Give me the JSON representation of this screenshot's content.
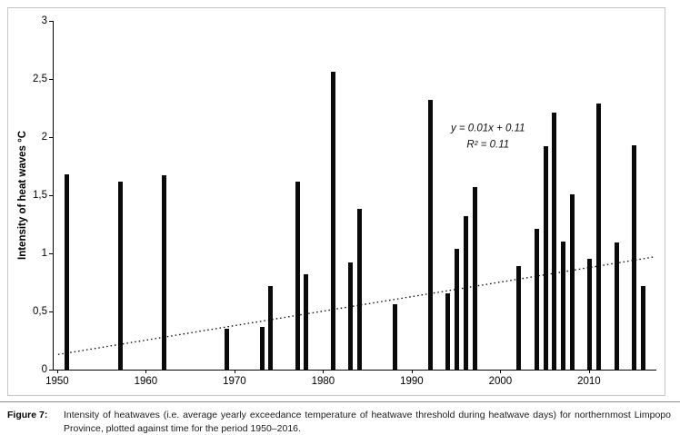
{
  "figure": {
    "caption_label": "Figure 7:",
    "caption_text": "Intensity of heatwaves (i.e. average yearly exceedance temperature of heatwave threshold during heatwave days) for northernmost Limpopo Province, plotted against time for the period 1950–2016."
  },
  "chart_data": {
    "type": "bar",
    "title": "",
    "xlabel": "",
    "ylabel": "Intensity of heat waves °C",
    "xlim": [
      1949.5,
      2017.5
    ],
    "ylim": [
      0,
      3
    ],
    "grid": false,
    "legend": "none",
    "bar_color": "#0a0a0a",
    "decimal_separator": ",",
    "x_ticks": [
      {
        "value": 1950,
        "label": "1950"
      },
      {
        "value": 1960,
        "label": "1960"
      },
      {
        "value": 1970,
        "label": "1970"
      },
      {
        "value": 1980,
        "label": "1980"
      },
      {
        "value": 1990,
        "label": "1990"
      },
      {
        "value": 2000,
        "label": "2000"
      },
      {
        "value": 2010,
        "label": "2010"
      }
    ],
    "y_ticks": [
      {
        "value": 0,
        "label": "0"
      },
      {
        "value": 0.5,
        "label": "0,5"
      },
      {
        "value": 1,
        "label": "1"
      },
      {
        "value": 1.5,
        "label": "1,5"
      },
      {
        "value": 2,
        "label": "2"
      },
      {
        "value": 2.5,
        "label": "2,5"
      },
      {
        "value": 3,
        "label": "3"
      }
    ],
    "points": [
      {
        "year": 1951,
        "value": 1.68
      },
      {
        "year": 1957,
        "value": 1.62
      },
      {
        "year": 1962,
        "value": 1.67
      },
      {
        "year": 1969,
        "value": 0.35
      },
      {
        "year": 1973,
        "value": 0.37
      },
      {
        "year": 1974,
        "value": 0.72
      },
      {
        "year": 1977,
        "value": 1.62
      },
      {
        "year": 1978,
        "value": 0.82
      },
      {
        "year": 1981,
        "value": 2.56
      },
      {
        "year": 1983,
        "value": 0.92
      },
      {
        "year": 1984,
        "value": 1.38
      },
      {
        "year": 1988,
        "value": 0.56
      },
      {
        "year": 1992,
        "value": 2.32
      },
      {
        "year": 1994,
        "value": 0.66
      },
      {
        "year": 1995,
        "value": 1.04
      },
      {
        "year": 1996,
        "value": 1.32
      },
      {
        "year": 1997,
        "value": 1.57
      },
      {
        "year": 2002,
        "value": 0.89
      },
      {
        "year": 2004,
        "value": 1.21
      },
      {
        "year": 2005,
        "value": 1.92
      },
      {
        "year": 2006,
        "value": 2.21
      },
      {
        "year": 2007,
        "value": 1.1
      },
      {
        "year": 2008,
        "value": 1.51
      },
      {
        "year": 2010,
        "value": 0.95
      },
      {
        "year": 2011,
        "value": 2.29
      },
      {
        "year": 2013,
        "value": 1.09
      },
      {
        "year": 2015,
        "value": 1.93
      },
      {
        "year": 2016,
        "value": 0.72
      }
    ],
    "trendline": {
      "style": "dotted",
      "equation": "y = 0.01x + 0.11",
      "r_squared": "R² = 0.11",
      "x1": 1950,
      "y1": 0.13,
      "x2": 2017.3,
      "y2": 0.97
    },
    "annotation": {
      "x": 1998.5,
      "y": 2.0
    }
  }
}
